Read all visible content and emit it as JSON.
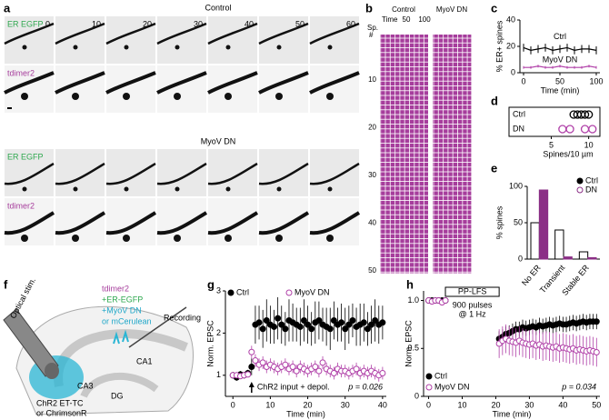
{
  "panel_labels": [
    "a",
    "b",
    "c",
    "d",
    "e",
    "f",
    "g",
    "h"
  ],
  "panel_a": {
    "control_title": "Control",
    "dn_title": "MyoV DN",
    "channel_1": "ER EGFP",
    "channel_2": "tdimer2",
    "times": [
      "0",
      "10",
      "20",
      "30",
      "40",
      "50",
      "60"
    ]
  },
  "panel_b": {
    "control": "Control",
    "dn": "MyoV DN",
    "x_label": "Time",
    "x_ticks": [
      "50",
      "100"
    ],
    "y_label": [
      "Sp.",
      "#"
    ],
    "y_ticks": [
      "10",
      "20",
      "30",
      "40",
      "50"
    ]
  },
  "panel_f": {
    "line_1": "tdimer2",
    "line_2": "+ER-EGFP",
    "line_3": "+MyoV DN",
    "line_4": "or mCerulean",
    "stim": "Optical stim.",
    "recording": "Recording",
    "ca1": "CA1",
    "ca3": "CA3",
    "dg": "DG",
    "source_1": "ChR2 ET-TC",
    "source_2": "or ChrimsonR"
  },
  "chart_data": [
    {
      "type": "line",
      "y_label": "% ER+ spines",
      "x_label": "Time (min)",
      "x": [
        0,
        10,
        20,
        30,
        40,
        50,
        60,
        70,
        80,
        90,
        100
      ],
      "xlim": [
        -5,
        105
      ],
      "xticks": [
        0,
        50,
        100
      ],
      "ylim": [
        0,
        40
      ],
      "yticks": [
        0,
        20,
        40
      ],
      "series": [
        {
          "name": "Ctrl",
          "color": "#000000",
          "values": [
            19,
            17,
            18,
            19,
            17,
            18,
            19,
            17,
            18,
            18,
            17
          ],
          "errors": [
            3,
            3,
            3,
            3,
            3,
            3,
            3,
            3,
            3,
            3,
            3
          ]
        },
        {
          "name": "MyoV DN",
          "color": "#b040a8",
          "values": [
            4,
            4,
            5,
            4,
            4,
            5,
            4,
            4,
            4,
            5,
            4
          ],
          "errors": [
            1,
            1,
            1,
            1,
            1,
            1,
            1,
            1,
            1,
            1,
            1
          ]
        }
      ]
    },
    {
      "type": "strip",
      "x_label": "Spines/10 µm",
      "xlim": [
        3,
        11.5
      ],
      "xticks": [
        5,
        10
      ],
      "series": [
        {
          "name": "Ctrl",
          "color": "#000000",
          "values": [
            8,
            8.5,
            9,
            9.5,
            10
          ]
        },
        {
          "name": "DN",
          "color": "#b040a8",
          "values": [
            6.5,
            7.5,
            9.5,
            10.5
          ]
        }
      ]
    },
    {
      "type": "bar",
      "y_label": "% spines",
      "categories": [
        "No ER",
        "Transient",
        "Stable ER"
      ],
      "ylim": [
        0,
        100
      ],
      "yticks": [
        0,
        50,
        100
      ],
      "series": [
        {
          "name": "Ctrl",
          "color": "#000000",
          "marker": "filled",
          "values": [
            50,
            40,
            10
          ]
        },
        {
          "name": "DN",
          "color": "#8b2f86",
          "marker": "open",
          "values": [
            95,
            3,
            2
          ]
        }
      ]
    },
    {
      "type": "scatter",
      "y_label": "Norm. EPSC",
      "x_label": "Time (min)",
      "arrow_label": "ChR2 input + depol.",
      "p_value": "p = 0.026",
      "x": [
        0,
        1,
        2,
        3,
        4,
        5,
        6,
        7,
        8,
        9,
        10,
        11,
        12,
        13,
        14,
        15,
        16,
        17,
        18,
        19,
        20,
        21,
        22,
        23,
        24,
        25,
        26,
        27,
        28,
        29,
        30,
        31,
        32,
        33,
        34,
        35,
        36,
        37,
        38,
        39,
        40
      ],
      "xlim": [
        -2,
        41
      ],
      "xticks": [
        0,
        10,
        20,
        30,
        40
      ],
      "ylim": [
        0.5,
        3
      ],
      "yticks": [
        1,
        2,
        3
      ],
      "series": [
        {
          "name": "Ctrl",
          "color": "#000000",
          "marker": "filled",
          "values": [
            1.0,
            0.95,
            1.02,
            1.0,
            1.05,
            1.2,
            2.2,
            2.25,
            2.1,
            2.3,
            2.2,
            2.15,
            2.35,
            2.2,
            2.1,
            2.3,
            2.25,
            2.2,
            2.15,
            2.3,
            2.2,
            2.1,
            2.25,
            2.3,
            2.2,
            2.15,
            2.1,
            2.3,
            2.2,
            2.25,
            2.1,
            2.2,
            2.3,
            2.15,
            2.2,
            2.25,
            2.1,
            2.2,
            2.3,
            2.2,
            2.25
          ],
          "errors": [
            0.08,
            0.08,
            0.08,
            0.08,
            0.08,
            0.2,
            0.45,
            0.4,
            0.45,
            0.5,
            0.45,
            0.4,
            0.5,
            0.45,
            0.4,
            0.5,
            0.45,
            0.4,
            0.45,
            0.5,
            0.45,
            0.4,
            0.5,
            0.45,
            0.4,
            0.45,
            0.5,
            0.45,
            0.4,
            0.45,
            0.5,
            0.45,
            0.4,
            0.45,
            0.5,
            0.45,
            0.4,
            0.45,
            0.5,
            0.45,
            0.4
          ]
        },
        {
          "name": "MyoV DN",
          "color": "#b040a8",
          "marker": "open",
          "values": [
            1.0,
            1.0,
            0.98,
            1.0,
            1.02,
            1.55,
            1.35,
            1.25,
            1.3,
            1.2,
            1.25,
            1.2,
            1.15,
            1.2,
            1.25,
            1.15,
            1.2,
            1.1,
            1.2,
            1.15,
            1.1,
            1.15,
            1.2,
            1.1,
            1.3,
            1.15,
            1.1,
            1.05,
            1.15,
            1.1,
            1.1,
            1.05,
            1.1,
            1.15,
            1.05,
            1.1,
            1.05,
            1.1,
            1.05,
            1.0,
            1.05
          ],
          "errors": [
            0.05,
            0.05,
            0.05,
            0.05,
            0.05,
            0.15,
            0.15,
            0.15,
            0.15,
            0.15,
            0.15,
            0.15,
            0.15,
            0.15,
            0.15,
            0.15,
            0.15,
            0.15,
            0.15,
            0.15,
            0.15,
            0.15,
            0.15,
            0.15,
            0.15,
            0.15,
            0.15,
            0.15,
            0.15,
            0.15,
            0.15,
            0.15,
            0.15,
            0.15,
            0.15,
            0.15,
            0.15,
            0.15,
            0.15,
            0.15,
            0.15
          ]
        }
      ]
    },
    {
      "type": "scatter",
      "y_label": "Norm. EPSC",
      "x_label": "Time (min)",
      "box_label": "PP-LFS",
      "note_1": "900 pulses",
      "note_2": "@ 1 Hz",
      "p_value": "p = 0.034",
      "x": [
        0,
        1,
        2,
        3,
        4,
        5,
        21,
        22,
        23,
        24,
        25,
        26,
        27,
        28,
        29,
        30,
        31,
        32,
        33,
        34,
        35,
        36,
        37,
        38,
        39,
        40,
        41,
        42,
        43,
        44,
        45,
        46,
        47,
        48,
        49,
        50
      ],
      "xlim": [
        -1.5,
        51
      ],
      "xticks": [
        0,
        10,
        20,
        30,
        40,
        50
      ],
      "ylim": [
        0,
        1.1
      ],
      "yticks": [
        0,
        0.5,
        {
          "value": 1,
          "label": "1.0"
        }
      ],
      "series": [
        {
          "name": "Ctrl",
          "color": "#000000",
          "marker": "filled",
          "values": [
            1,
            1,
            1,
            1,
            1,
            1,
            0.6,
            0.62,
            0.65,
            0.66,
            0.68,
            0.7,
            0.7,
            0.72,
            0.71,
            0.72,
            0.73,
            0.72,
            0.74,
            0.73,
            0.74,
            0.75,
            0.74,
            0.75,
            0.76,
            0.75,
            0.75,
            0.76,
            0.77,
            0.76,
            0.77,
            0.78,
            0.77,
            0.78,
            0.78,
            0.78
          ],
          "errors": [
            0.02,
            0.02,
            0.02,
            0.02,
            0.02,
            0.02,
            0.08,
            0.08,
            0.08,
            0.08,
            0.08,
            0.08,
            0.08,
            0.08,
            0.08,
            0.08,
            0.08,
            0.08,
            0.08,
            0.08,
            0.08,
            0.08,
            0.08,
            0.08,
            0.08,
            0.08,
            0.08,
            0.08,
            0.08,
            0.08,
            0.08,
            0.08,
            0.08,
            0.08,
            0.08,
            0.08
          ]
        },
        {
          "name": "MyoV DN",
          "color": "#b040a8",
          "marker": "open",
          "values": [
            1,
            0.99,
            1,
            1,
            0.98,
            1,
            0.55,
            0.58,
            0.6,
            0.58,
            0.57,
            0.56,
            0.58,
            0.56,
            0.55,
            0.54,
            0.55,
            0.53,
            0.54,
            0.52,
            0.53,
            0.52,
            0.51,
            0.52,
            0.5,
            0.51,
            0.5,
            0.49,
            0.5,
            0.48,
            0.49,
            0.48,
            0.47,
            0.48,
            0.47,
            0.46
          ],
          "errors": [
            0.02,
            0.02,
            0.02,
            0.02,
            0.02,
            0.02,
            0.15,
            0.15,
            0.15,
            0.15,
            0.15,
            0.15,
            0.15,
            0.15,
            0.15,
            0.15,
            0.15,
            0.15,
            0.15,
            0.15,
            0.15,
            0.15,
            0.15,
            0.15,
            0.15,
            0.15,
            0.15,
            0.15,
            0.15,
            0.15,
            0.15,
            0.15,
            0.15,
            0.15,
            0.15,
            0.15
          ]
        }
      ]
    }
  ]
}
